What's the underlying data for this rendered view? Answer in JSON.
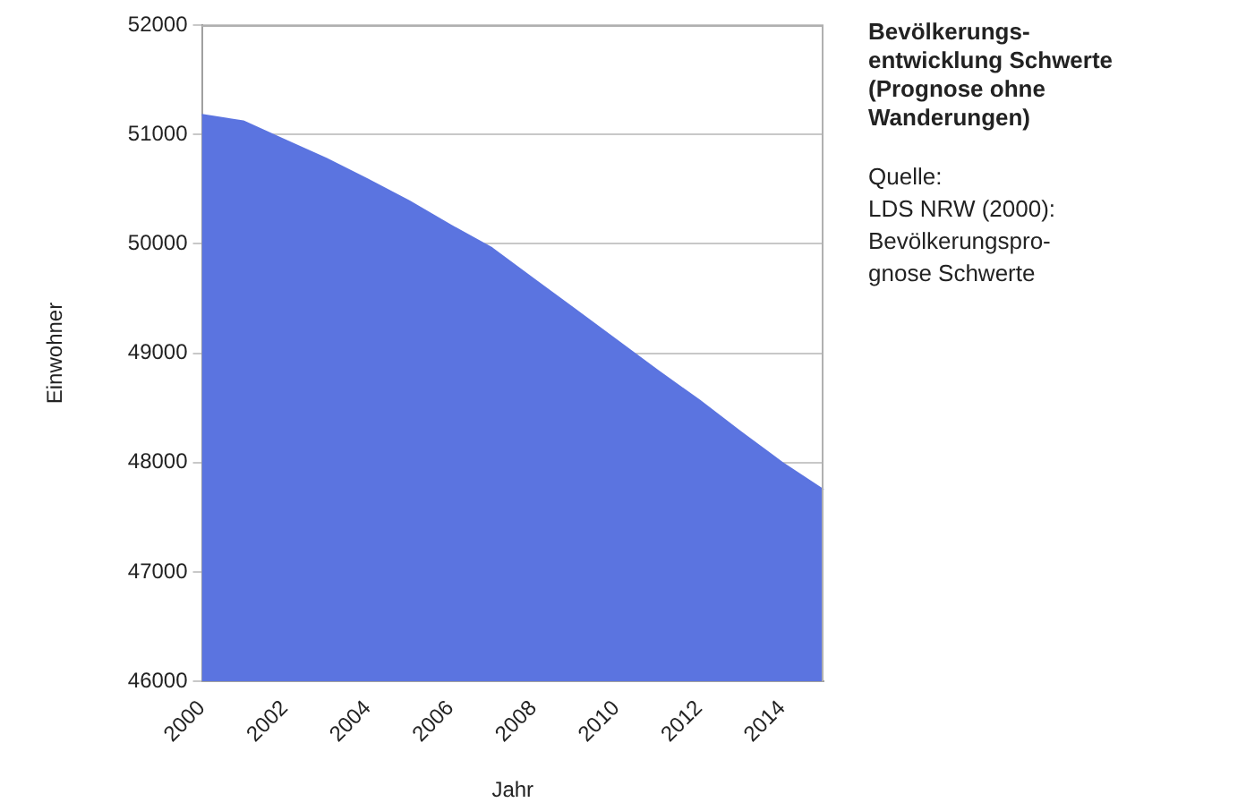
{
  "chart_data": {
    "type": "area",
    "title": "Bevölkerungs-\nentwicklung Schwerte\n(Prognose ohne\nWanderungen)",
    "annotations": [
      "Quelle:\nLDS NRW (2000):\nBevölkerungspro-\ngnose Schwerte"
    ],
    "xlabel": "Jahr",
    "ylabel": "Einwohner",
    "categories": [
      "2000",
      null,
      "2002",
      null,
      "2004",
      null,
      "2006",
      null,
      "2008",
      null,
      "2010",
      null,
      "2012",
      null,
      "2014",
      null
    ],
    "series": [
      {
        "color": "#5b74e0",
        "values": [
          51180,
          51120,
          50950,
          50780,
          50590,
          50390,
          50170,
          49960,
          49680,
          49400,
          49120,
          48840,
          48570,
          48280,
          48000,
          47750
        ]
      }
    ],
    "ylim": [
      46000,
      52000
    ],
    "yticks": [
      46000,
      47000,
      48000,
      49000,
      50000,
      51000,
      52000
    ],
    "grid": "y",
    "legend": false
  }
}
